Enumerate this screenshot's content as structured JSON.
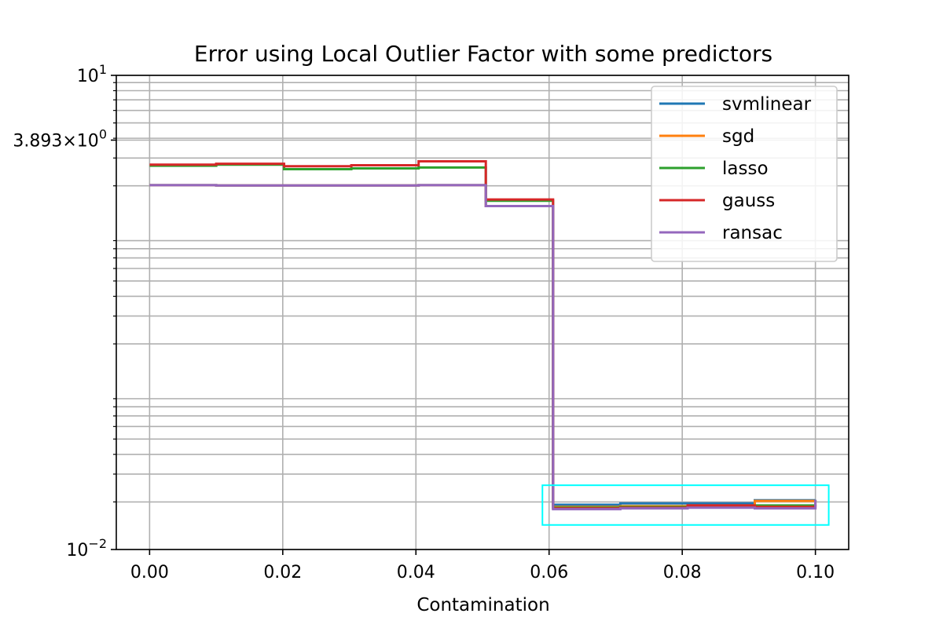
{
  "chart_data": {
    "type": "line",
    "title": "Error using Local Outlier Factor with some predictors",
    "xlabel": "Contamination",
    "ylabel": "",
    "xscale": "linear",
    "yscale": "log",
    "xlim": [
      -0.005,
      0.105
    ],
    "ylim": [
      0.01,
      10
    ],
    "grid": true,
    "legend_position": "top-right",
    "x_ticks": [
      0.0,
      0.02,
      0.04,
      0.06,
      0.08,
      0.1
    ],
    "x_tick_labels": [
      "0.00",
      "0.02",
      "0.04",
      "0.06",
      "0.08",
      "0.10"
    ],
    "y_ticks": [
      0.01,
      3.893,
      10
    ],
    "y_tick_labels": [
      {
        "base": "10",
        "exp": "−2"
      },
      {
        "base": "3.893×10",
        "exp": "0"
      },
      {
        "base": "10",
        "exp": "1"
      }
    ],
    "annotation_box": {
      "x": [
        0.059,
        0.102
      ],
      "y": [
        0.0143,
        0.0255
      ],
      "color": "#00ffff"
    },
    "x": [
      0.0,
      0.01,
      0.0202,
      0.0303,
      0.0404,
      0.0505,
      0.0606,
      0.0707,
      0.0808,
      0.0909,
      0.1
    ],
    "series": [
      {
        "name": "svmlinear",
        "color": "#1f77b4",
        "values": [
          2.02,
          2.01,
          2.01,
          2.01,
          2.02,
          1.49,
          0.0192,
          0.0196,
          0.0196,
          0.0205,
          0.0206
        ]
      },
      {
        "name": "sgd",
        "color": "#ff7f0e",
        "values": [
          2.02,
          2.01,
          2.01,
          2.01,
          2.02,
          1.49,
          0.0186,
          0.0188,
          0.019,
          0.0203,
          0.0205
        ]
      },
      {
        "name": "lasso",
        "color": "#2ca02c",
        "values": [
          2.68,
          2.72,
          2.55,
          2.58,
          2.61,
          1.61,
          0.0184,
          0.0186,
          0.0188,
          0.019,
          0.0192
        ]
      },
      {
        "name": "gauss",
        "color": "#d62728",
        "values": [
          2.72,
          2.76,
          2.66,
          2.7,
          2.86,
          1.64,
          0.0182,
          0.0184,
          0.019,
          0.0186,
          0.0196
        ]
      },
      {
        "name": "ransac",
        "color": "#9467bd",
        "values": [
          2.02,
          2.01,
          2.01,
          2.01,
          2.02,
          1.49,
          0.018,
          0.0182,
          0.0184,
          0.0182,
          0.0206
        ]
      }
    ]
  }
}
